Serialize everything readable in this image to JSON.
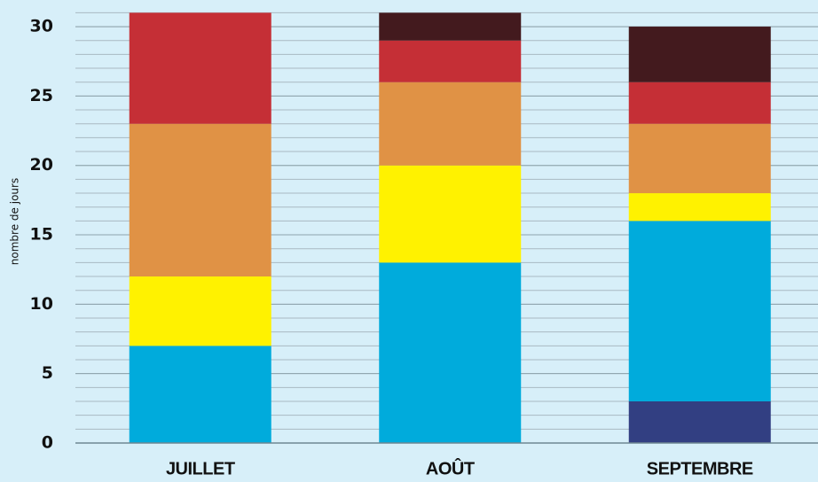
{
  "chart_data": {
    "type": "stacked_bar",
    "y_label": "nombre de jours",
    "categories": [
      "JUILLET",
      "AOÛT",
      "SEPTEMBRE"
    ],
    "series": [
      {
        "color": "#323f82",
        "values": [
          0,
          0,
          3
        ]
      },
      {
        "color": "#00abdc",
        "values": [
          7,
          13,
          13
        ]
      },
      {
        "color": "#fff200",
        "values": [
          5,
          7,
          2
        ]
      },
      {
        "color": "#e09245",
        "values": [
          11,
          6,
          5
        ]
      },
      {
        "color": "#c52f36",
        "values": [
          8,
          3,
          3
        ]
      },
      {
        "color": "#431a1e",
        "values": [
          0,
          2,
          4
        ]
      }
    ],
    "ylim": [
      0,
      31
    ],
    "yticks": [
      0,
      5,
      10,
      15,
      20,
      25,
      30
    ],
    "grid": true,
    "minor_grid_step": 1
  }
}
